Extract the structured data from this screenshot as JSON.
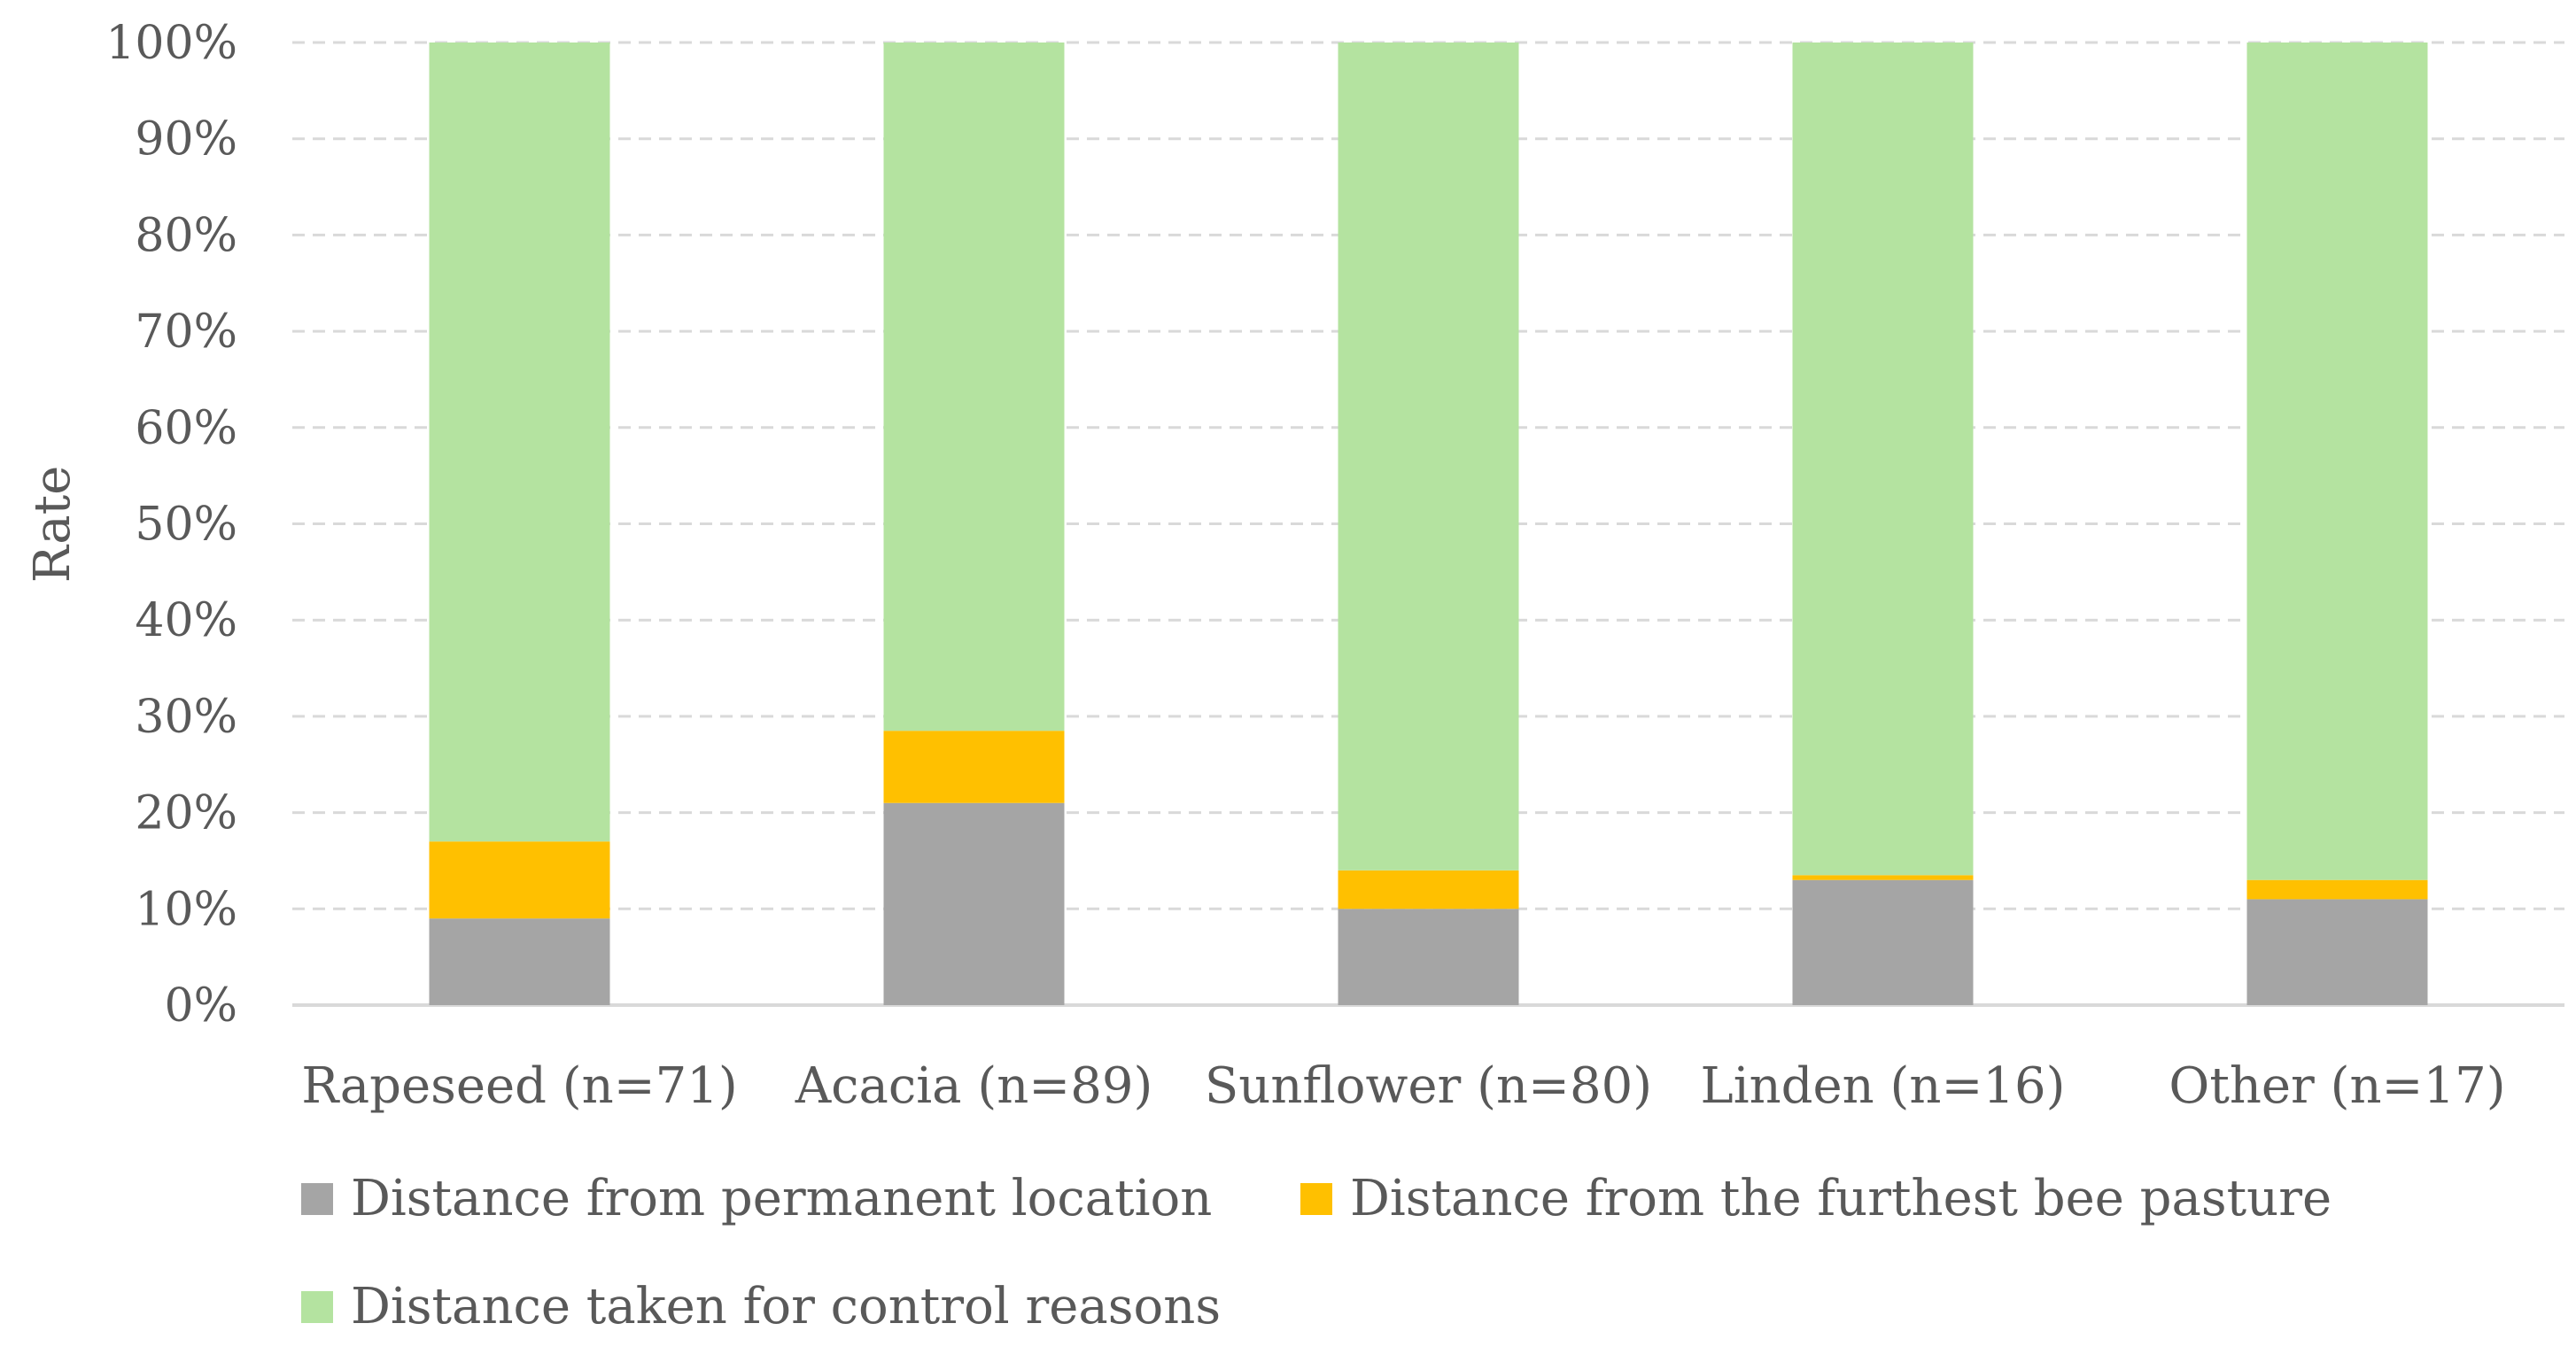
{
  "chart_data": {
    "type": "bar",
    "stacked": true,
    "percent_stacked": true,
    "categories": [
      "Rapeseed (n=71)",
      "Acacia (n=89)",
      "Sunflower (n=80)",
      "Linden (n=16)",
      "Other (n=17)"
    ],
    "series": [
      {
        "name": "Distance from permanent location",
        "color": "#A5A5A5",
        "values": [
          9,
          21,
          10,
          13,
          11
        ]
      },
      {
        "name": "Distance from the furthest bee pasture",
        "color": "#FFC000",
        "values": [
          8,
          7.5,
          4,
          0.5,
          2
        ]
      },
      {
        "name": "Distance taken for control reasons",
        "color": "#B4E3A0",
        "values": [
          83,
          71.5,
          86,
          86.5,
          87
        ]
      }
    ],
    "title": "",
    "xlabel": "",
    "ylabel": "Rate",
    "ylim": [
      0,
      100
    ],
    "yticks": [
      "0%",
      "10%",
      "20%",
      "30%",
      "40%",
      "50%",
      "60%",
      "70%",
      "80%",
      "90%",
      "100%"
    ],
    "grid": true,
    "legend_position": "bottom"
  }
}
